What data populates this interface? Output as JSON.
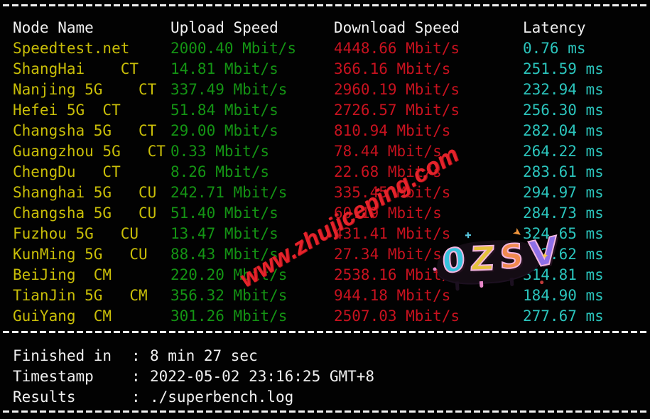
{
  "app": {
    "name": "superbench speedtest result terminal"
  },
  "colors": {
    "background": "#020202",
    "header_text": "#F0F0F0",
    "node_yellow": "#C9BE08",
    "upload_green": "#149414",
    "download_red": "#C8121F",
    "latency_cyan": "#2BC4BC",
    "watermark_red": "#E5232B",
    "separator_white": "#F2F2F2"
  },
  "table": {
    "headers": [
      "Node Name",
      "Upload Speed",
      "Download Speed",
      "Latency"
    ],
    "rows": [
      {
        "node": "Speedtest.net",
        "upload": "2000.40 Mbit/s",
        "download": "4448.66 Mbit/s",
        "latency": "0.76 ms"
      },
      {
        "node": "ShangHai    CT",
        "upload": "14.81 Mbit/s",
        "download": "366.16 Mbit/s",
        "latency": "251.59 ms"
      },
      {
        "node": "Nanjing 5G    CT",
        "upload": "337.49 Mbit/s",
        "download": "2960.19 Mbit/s",
        "latency": "232.94 ms"
      },
      {
        "node": "Hefei 5G  CT",
        "upload": "51.84 Mbit/s",
        "download": "2726.57 Mbit/s",
        "latency": "256.30 ms"
      },
      {
        "node": "Changsha 5G   CT",
        "upload": "29.00 Mbit/s",
        "download": "810.94 Mbit/s",
        "latency": "282.04 ms"
      },
      {
        "node": "Guangzhou 5G   CT",
        "upload": "0.33 Mbit/s",
        "download": "78.44 Mbit/s",
        "latency": "264.22 ms"
      },
      {
        "node": "ChengDu   CT",
        "upload": "8.26 Mbit/s",
        "download": "22.68 Mbit/s",
        "latency": "283.61 ms"
      },
      {
        "node": "Shanghai 5G   CU",
        "upload": "242.71 Mbit/s",
        "download": "335.45 Mbit/s",
        "latency": "294.97 ms"
      },
      {
        "node": "Changsha 5G   CU",
        "upload": "51.40 Mbit/s",
        "download": "60.19 Mbit/s",
        "latency": "284.73 ms"
      },
      {
        "node": "Fuzhou 5G   CU",
        "upload": "13.47 Mbit/s",
        "download": "431.41 Mbit/s",
        "latency": "324.65 ms"
      },
      {
        "node": "KunMing 5G   CU",
        "upload": "88.43 Mbit/s",
        "download": "27.34 Mbit/s",
        "latency": "222.62 ms"
      },
      {
        "node": "BeiJing  CM",
        "upload": "220.20 Mbit/s",
        "download": "2538.16 Mbit/s",
        "latency": "314.81 ms"
      },
      {
        "node": "TianJin 5G   CM",
        "upload": "356.32 Mbit/s",
        "download": "944.18 Mbit/s",
        "latency": "184.90 ms"
      },
      {
        "node": "GuiYang  CM",
        "upload": "301.26 Mbit/s",
        "download": "2507.03 Mbit/s",
        "latency": "277.67 ms"
      }
    ]
  },
  "footer": {
    "rows": [
      {
        "label": "Finished in",
        "separator": ":",
        "value": "8 min 27 sec"
      },
      {
        "label": "Timestamp",
        "separator": ":",
        "value": "2022-05-02 23:16:25 GMT+8"
      },
      {
        "label": "Results",
        "separator": ":",
        "value": "./superbench.log"
      }
    ]
  },
  "watermark": {
    "text": "www.zhujiceping.com"
  },
  "logo": {
    "letters": [
      "0",
      "Z",
      "S",
      "V"
    ],
    "sparkles": [
      "✦",
      "➤",
      "✚"
    ]
  }
}
